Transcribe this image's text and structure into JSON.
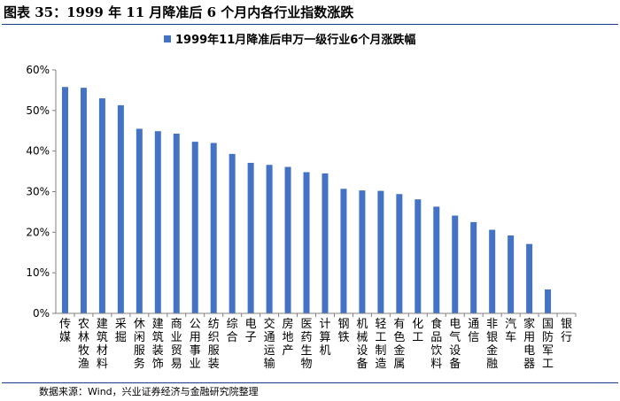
{
  "figure_title": "图表 35：1999 年 11 月降准后 6 个月内各行业指数涨跌",
  "source_note": "数据来源：Wind，兴业证券经济与金融研究院整理",
  "colors": {
    "bar": "#4472C4",
    "axis": "#808080",
    "rule": "#1a3a8a"
  },
  "chart_data": {
    "type": "bar",
    "title": "",
    "legend": [
      "1999年11月降准后申万一级行业6个月涨跌幅"
    ],
    "legend_position": "top-center",
    "categories": [
      "传媒",
      "农林牧渔",
      "建筑材料",
      "采掘",
      "休闲服务",
      "建筑装饰",
      "商业贸易",
      "公用事业",
      "纺织服装",
      "综合",
      "电子",
      "交通运输",
      "房地产",
      "医药生物",
      "计算机",
      "钢铁",
      "机械设备",
      "轻工制造",
      "有色金属",
      "化工",
      "食品饮料",
      "电气设备",
      "通信",
      "非银金融",
      "汽车",
      "家用电器",
      "国防军工",
      "银行"
    ],
    "values": [
      55.8,
      55.6,
      53.0,
      51.3,
      45.5,
      44.9,
      44.3,
      42.3,
      42.0,
      39.3,
      37.1,
      36.6,
      36.1,
      34.8,
      34.5,
      30.7,
      30.3,
      30.2,
      29.4,
      28.1,
      26.3,
      24.1,
      22.5,
      20.6,
      19.2,
      17.1,
      5.9,
      0.0
    ],
    "ylim": [
      0,
      60
    ],
    "yticks": [
      0,
      10,
      20,
      30,
      40,
      50,
      60
    ],
    "ytick_labels": [
      "0%",
      "10%",
      "20%",
      "30%",
      "40%",
      "50%",
      "60%"
    ],
    "xlabel": "",
    "ylabel": "",
    "grid": false
  }
}
